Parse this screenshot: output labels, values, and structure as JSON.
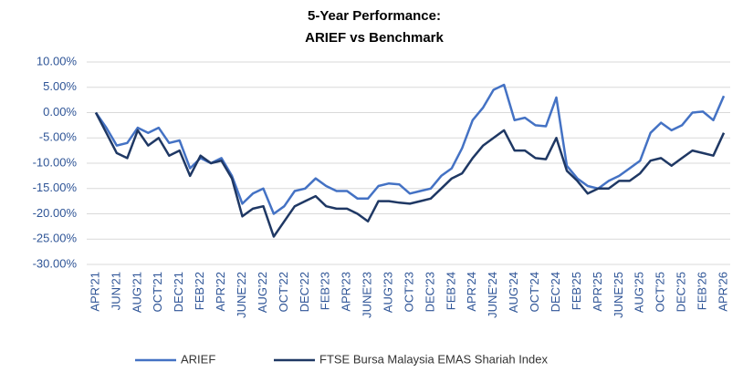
{
  "chart_data": {
    "type": "line",
    "title": [
      "5-Year Performance:",
      "ARIEF vs Benchmark"
    ],
    "categories": [
      "APR'21",
      null,
      "JUN'21",
      null,
      "AUG'21",
      null,
      "OCT'21",
      null,
      "DEC'21",
      null,
      "FEB'22",
      null,
      "APR'22",
      null,
      "JUNE'22",
      null,
      "AUG'22",
      null,
      "OCT'22",
      null,
      "DEC'22",
      null,
      "FEB'23",
      null,
      "APR'23",
      null,
      "JUNE'23",
      null,
      "AUG'23",
      null,
      "OCT'23",
      null,
      "DEC'23",
      null,
      "FEB'24",
      null,
      "APR'24",
      null,
      "JUNE'24",
      null,
      "AUG'24",
      null,
      "OCT'24",
      null,
      "DEC'24",
      null,
      "FEB'25",
      null,
      "APR'25",
      null,
      "JUNE'25",
      null,
      "AUG'25",
      null,
      "OCT'25",
      null,
      "DEC'25",
      null,
      "FEB'26",
      null,
      "APR'26"
    ],
    "series": [
      {
        "name": "ARIEF",
        "color": "#4472c4",
        "values": [
          0,
          -3,
          -6.5,
          -6,
          -3,
          -4,
          -3,
          -6,
          -5.5,
          -11,
          -9,
          -10,
          -9,
          -12.5,
          -18,
          -16,
          -15,
          -20,
          -18.5,
          -15.5,
          -15,
          -13,
          -14.5,
          -15.5,
          -15.5,
          -17,
          -17,
          -14.5,
          -14,
          -14.2,
          -16,
          -15.5,
          -15,
          -12.5,
          -11,
          -7,
          -1.5,
          1,
          4.5,
          5.5,
          -1.5,
          -1,
          -2.5,
          -2.7,
          3,
          -10.5,
          -13,
          -14.5,
          -15,
          -13.5,
          -12.5,
          -11,
          -9.5,
          -4,
          -2,
          -3.5,
          -2.5,
          0,
          0.2,
          -1.5,
          3.3
        ]
      },
      {
        "name": "FTSE Bursa Malaysia EMAS Shariah Index",
        "color": "#1f3864",
        "values": [
          0,
          -4,
          -8,
          -9,
          -3.5,
          -6.5,
          -5,
          -8.5,
          -7.5,
          -12.5,
          -8.5,
          -10,
          -9.5,
          -13,
          -20.5,
          -19,
          -18.5,
          -24.5,
          -21.5,
          -18.5,
          -17.5,
          -16.5,
          -18.5,
          -19,
          -19,
          -20,
          -21.5,
          -17.5,
          -17.5,
          -17.8,
          -18,
          -17.5,
          -17,
          -15,
          -13,
          -12,
          -9,
          -6.5,
          -5,
          -3.5,
          -7.5,
          -7.5,
          -9,
          -9.2,
          -5,
          -11.5,
          -13.5,
          -16,
          -15,
          -15,
          -13.5,
          -13.5,
          -12,
          -9.5,
          -9,
          -10.5,
          -9,
          -7.5,
          -8,
          -8.5,
          -4
        ]
      }
    ],
    "ylim": [
      -30,
      10
    ],
    "yticks": [
      {
        "value": 10,
        "label": "10.00%"
      },
      {
        "value": 5,
        "label": "5.00%"
      },
      {
        "value": 0,
        "label": "0.00%"
      },
      {
        "value": -5,
        "label": "-5.00%"
      },
      {
        "value": -10,
        "label": "-10.00%"
      },
      {
        "value": -15,
        "label": "-15.00%"
      },
      {
        "value": -20,
        "label": "-20.00%"
      },
      {
        "value": -25,
        "label": "-25.00%"
      },
      {
        "value": -30,
        "label": "-30.00%"
      }
    ],
    "grid": true,
    "legend": "bottom"
  }
}
